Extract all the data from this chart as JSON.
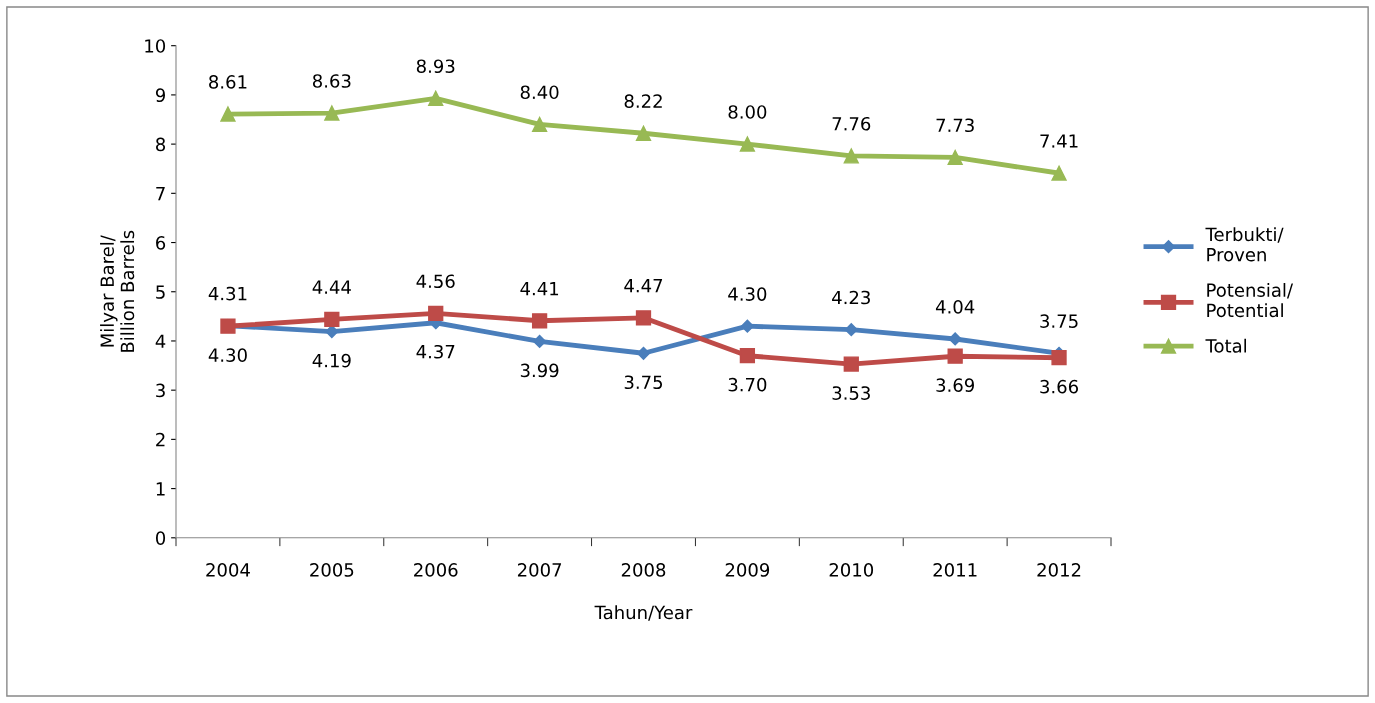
{
  "chart_data": {
    "type": "line",
    "xlabel": "Tahun/Year",
    "ylabel": "Milyar Barel/\nBillion Barrels",
    "categories": [
      "2004",
      "2005",
      "2006",
      "2007",
      "2008",
      "2009",
      "2010",
      "2011",
      "2012"
    ],
    "series": [
      {
        "name": "Terbukti/\nProven",
        "color": "#4a7ebb",
        "marker": "diamond",
        "values": [
          4.31,
          4.19,
          4.37,
          3.99,
          3.75,
          4.3,
          4.23,
          4.04,
          3.75
        ],
        "value_labels": [
          "4.31",
          "4.19",
          "4.37",
          "3.99",
          "3.75",
          "4.30",
          "4.23",
          "4.04",
          "3.75"
        ]
      },
      {
        "name": "Potensial/\nPotential",
        "color": "#be4b48",
        "marker": "square",
        "values": [
          4.3,
          4.44,
          4.56,
          4.41,
          4.47,
          3.7,
          3.53,
          3.69,
          3.66
        ],
        "value_labels": [
          "4.30",
          "4.44",
          "4.56",
          "4.41",
          "4.47",
          "3.70",
          "3.53",
          "3.69",
          "3.66"
        ]
      },
      {
        "name": "Total",
        "color": "#98b954",
        "marker": "triangle",
        "values": [
          8.61,
          8.63,
          8.93,
          8.4,
          8.22,
          8.0,
          7.76,
          7.73,
          7.41
        ],
        "value_labels": [
          "8.61",
          "8.63",
          "8.93",
          "8.40",
          "8.22",
          "8.00",
          "7.76",
          "7.73",
          "7.41"
        ]
      }
    ],
    "ylim": [
      0,
      10
    ],
    "yticks": [
      0,
      1,
      2,
      3,
      4,
      5,
      6,
      7,
      8,
      9,
      10
    ],
    "grid": false,
    "legend": "right"
  }
}
